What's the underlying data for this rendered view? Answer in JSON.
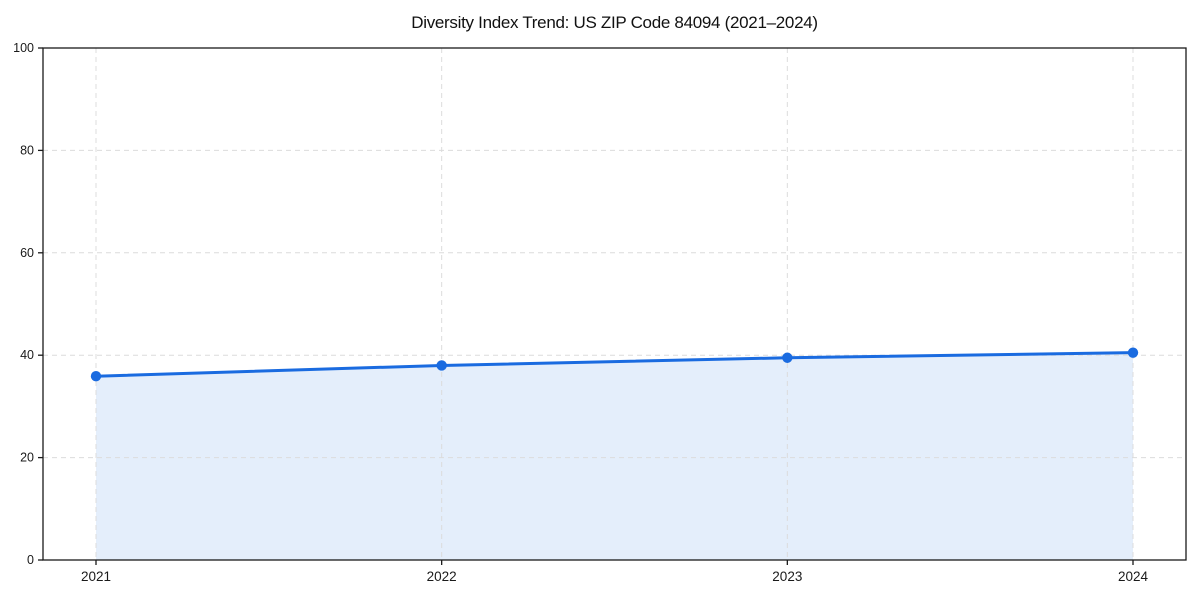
{
  "chart_data": {
    "type": "line",
    "title": "Diversity Index Trend: US ZIP Code 84094 (2021–2024)",
    "categories": [
      "2021",
      "2022",
      "2023",
      "2024"
    ],
    "series": [
      {
        "name": "Diversity Index",
        "values": [
          35.9,
          38.0,
          39.5,
          40.5
        ]
      }
    ],
    "xlabel": "",
    "ylabel": "",
    "ylim": [
      0,
      100
    ],
    "yticks": [
      0,
      20,
      40,
      60,
      80,
      100
    ],
    "grid": "dashed, both axes",
    "legend": "none",
    "area_fill": true,
    "colors": {
      "line": "#1a6be0",
      "marker": "#1a6be0",
      "area": "#e4eefb",
      "grid": "#dcdcdc",
      "spine": "#1a1a1a",
      "tick_label": "#1a1a1a",
      "background": "#ffffff"
    }
  }
}
